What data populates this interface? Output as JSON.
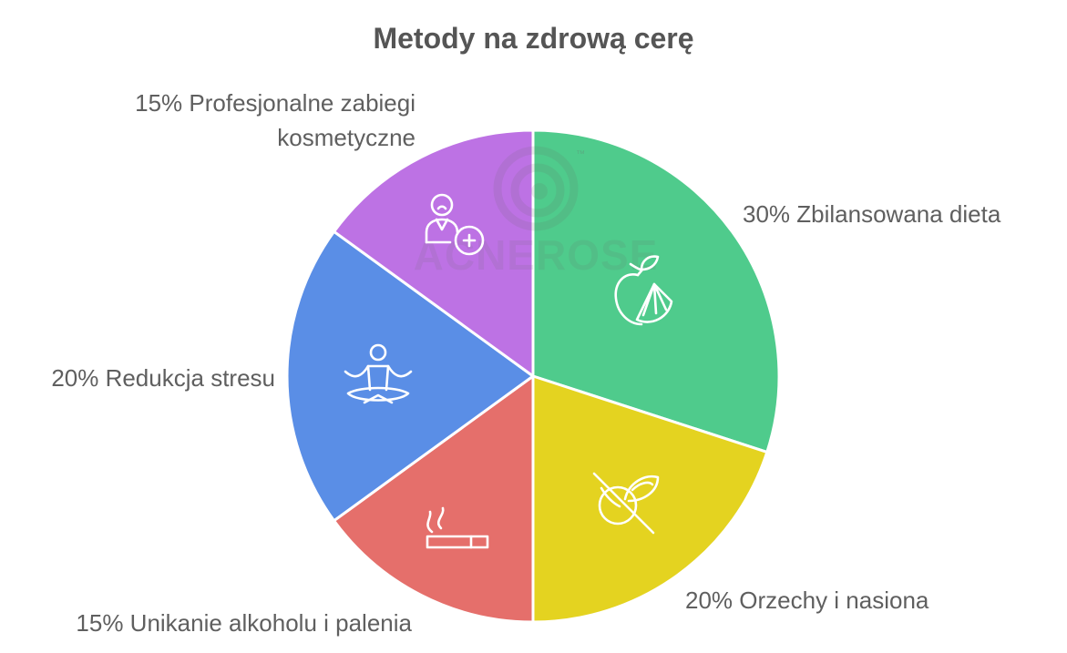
{
  "chart_data": {
    "type": "pie",
    "title": "Metody na zdrową cerę",
    "slices": [
      {
        "label": "30% Zbilansowana dieta",
        "value": 30,
        "color": "#4fcb8c",
        "icon": "fruit-icon"
      },
      {
        "label": "20% Orzechy i nasiona",
        "value": 20,
        "color": "#e4d320",
        "icon": "no-grain-icon"
      },
      {
        "label": "15% Unikanie alkoholu i palenia",
        "value": 15,
        "color": "#e56f6b",
        "icon": "cigarette-icon"
      },
      {
        "label": "20% Redukcja stresu",
        "value": 20,
        "color": "#5a8ee6",
        "icon": "meditation-icon"
      },
      {
        "label": "15% Profesjonalne zabiegi kosmetyczne",
        "value": 15,
        "color": "#bd72e4",
        "icon": "cosmetic-care-icon"
      }
    ]
  },
  "watermark": {
    "text": "ACNEROSE",
    "tm": "™"
  }
}
